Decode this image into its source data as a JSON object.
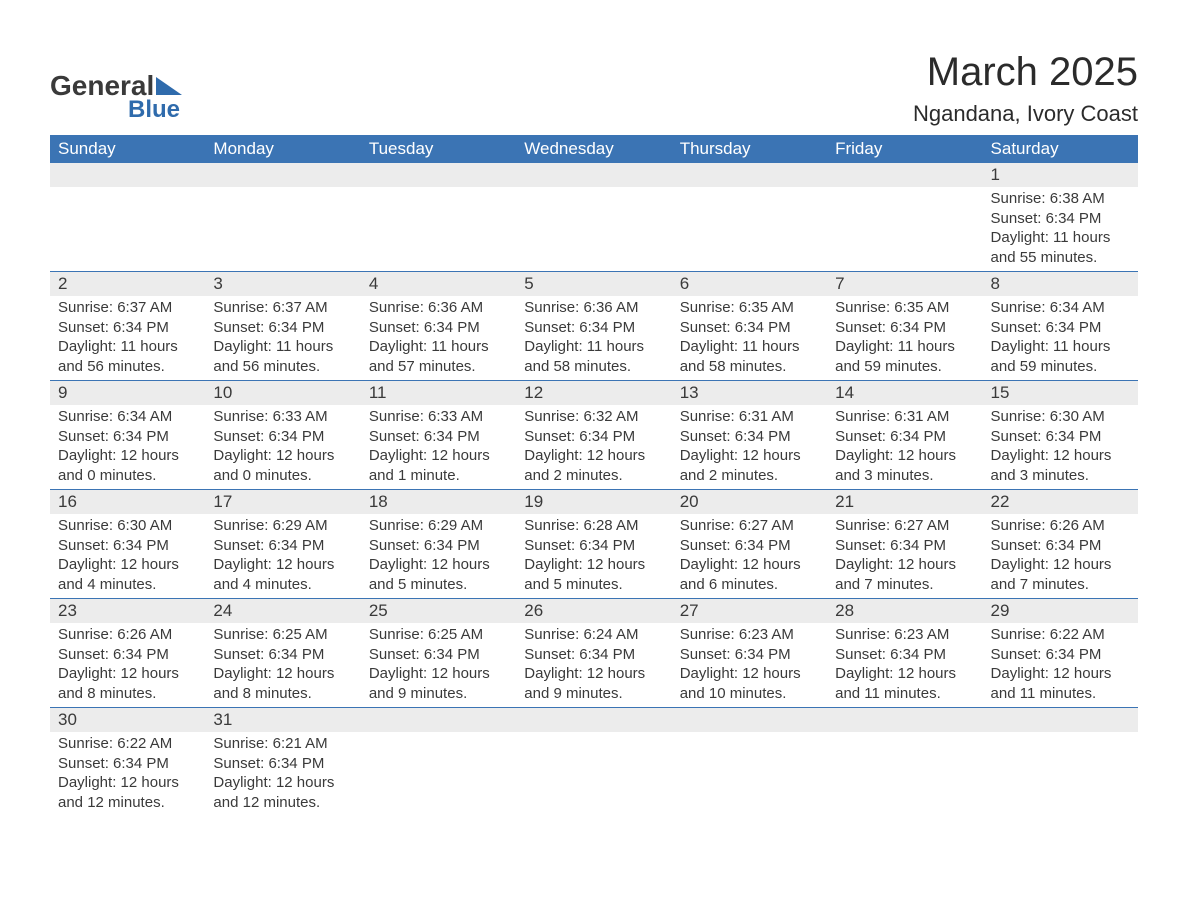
{
  "logo": {
    "text1": "General",
    "text2": "Blue"
  },
  "title": "March 2025",
  "location": "Ngandana, Ivory Coast",
  "colors": {
    "header_bg": "#3b74b4",
    "header_text": "#ffffff",
    "daynum_bg": "#ececec",
    "row_divider": "#3b74b4",
    "body_text": "#3a3a3a",
    "logo_accent": "#2f6bac"
  },
  "day_headers": [
    "Sunday",
    "Monday",
    "Tuesday",
    "Wednesday",
    "Thursday",
    "Friday",
    "Saturday"
  ],
  "weeks": [
    [
      {
        "empty": true
      },
      {
        "empty": true
      },
      {
        "empty": true
      },
      {
        "empty": true
      },
      {
        "empty": true
      },
      {
        "empty": true
      },
      {
        "num": "1",
        "sunrise": "Sunrise: 6:38 AM",
        "sunset": "Sunset: 6:34 PM",
        "daylight1": "Daylight: 11 hours",
        "daylight2": "and 55 minutes."
      }
    ],
    [
      {
        "num": "2",
        "sunrise": "Sunrise: 6:37 AM",
        "sunset": "Sunset: 6:34 PM",
        "daylight1": "Daylight: 11 hours",
        "daylight2": "and 56 minutes."
      },
      {
        "num": "3",
        "sunrise": "Sunrise: 6:37 AM",
        "sunset": "Sunset: 6:34 PM",
        "daylight1": "Daylight: 11 hours",
        "daylight2": "and 56 minutes."
      },
      {
        "num": "4",
        "sunrise": "Sunrise: 6:36 AM",
        "sunset": "Sunset: 6:34 PM",
        "daylight1": "Daylight: 11 hours",
        "daylight2": "and 57 minutes."
      },
      {
        "num": "5",
        "sunrise": "Sunrise: 6:36 AM",
        "sunset": "Sunset: 6:34 PM",
        "daylight1": "Daylight: 11 hours",
        "daylight2": "and 58 minutes."
      },
      {
        "num": "6",
        "sunrise": "Sunrise: 6:35 AM",
        "sunset": "Sunset: 6:34 PM",
        "daylight1": "Daylight: 11 hours",
        "daylight2": "and 58 minutes."
      },
      {
        "num": "7",
        "sunrise": "Sunrise: 6:35 AM",
        "sunset": "Sunset: 6:34 PM",
        "daylight1": "Daylight: 11 hours",
        "daylight2": "and 59 minutes."
      },
      {
        "num": "8",
        "sunrise": "Sunrise: 6:34 AM",
        "sunset": "Sunset: 6:34 PM",
        "daylight1": "Daylight: 11 hours",
        "daylight2": "and 59 minutes."
      }
    ],
    [
      {
        "num": "9",
        "sunrise": "Sunrise: 6:34 AM",
        "sunset": "Sunset: 6:34 PM",
        "daylight1": "Daylight: 12 hours",
        "daylight2": "and 0 minutes."
      },
      {
        "num": "10",
        "sunrise": "Sunrise: 6:33 AM",
        "sunset": "Sunset: 6:34 PM",
        "daylight1": "Daylight: 12 hours",
        "daylight2": "and 0 minutes."
      },
      {
        "num": "11",
        "sunrise": "Sunrise: 6:33 AM",
        "sunset": "Sunset: 6:34 PM",
        "daylight1": "Daylight: 12 hours",
        "daylight2": "and 1 minute."
      },
      {
        "num": "12",
        "sunrise": "Sunrise: 6:32 AM",
        "sunset": "Sunset: 6:34 PM",
        "daylight1": "Daylight: 12 hours",
        "daylight2": "and 2 minutes."
      },
      {
        "num": "13",
        "sunrise": "Sunrise: 6:31 AM",
        "sunset": "Sunset: 6:34 PM",
        "daylight1": "Daylight: 12 hours",
        "daylight2": "and 2 minutes."
      },
      {
        "num": "14",
        "sunrise": "Sunrise: 6:31 AM",
        "sunset": "Sunset: 6:34 PM",
        "daylight1": "Daylight: 12 hours",
        "daylight2": "and 3 minutes."
      },
      {
        "num": "15",
        "sunrise": "Sunrise: 6:30 AM",
        "sunset": "Sunset: 6:34 PM",
        "daylight1": "Daylight: 12 hours",
        "daylight2": "and 3 minutes."
      }
    ],
    [
      {
        "num": "16",
        "sunrise": "Sunrise: 6:30 AM",
        "sunset": "Sunset: 6:34 PM",
        "daylight1": "Daylight: 12 hours",
        "daylight2": "and 4 minutes."
      },
      {
        "num": "17",
        "sunrise": "Sunrise: 6:29 AM",
        "sunset": "Sunset: 6:34 PM",
        "daylight1": "Daylight: 12 hours",
        "daylight2": "and 4 minutes."
      },
      {
        "num": "18",
        "sunrise": "Sunrise: 6:29 AM",
        "sunset": "Sunset: 6:34 PM",
        "daylight1": "Daylight: 12 hours",
        "daylight2": "and 5 minutes."
      },
      {
        "num": "19",
        "sunrise": "Sunrise: 6:28 AM",
        "sunset": "Sunset: 6:34 PM",
        "daylight1": "Daylight: 12 hours",
        "daylight2": "and 5 minutes."
      },
      {
        "num": "20",
        "sunrise": "Sunrise: 6:27 AM",
        "sunset": "Sunset: 6:34 PM",
        "daylight1": "Daylight: 12 hours",
        "daylight2": "and 6 minutes."
      },
      {
        "num": "21",
        "sunrise": "Sunrise: 6:27 AM",
        "sunset": "Sunset: 6:34 PM",
        "daylight1": "Daylight: 12 hours",
        "daylight2": "and 7 minutes."
      },
      {
        "num": "22",
        "sunrise": "Sunrise: 6:26 AM",
        "sunset": "Sunset: 6:34 PM",
        "daylight1": "Daylight: 12 hours",
        "daylight2": "and 7 minutes."
      }
    ],
    [
      {
        "num": "23",
        "sunrise": "Sunrise: 6:26 AM",
        "sunset": "Sunset: 6:34 PM",
        "daylight1": "Daylight: 12 hours",
        "daylight2": "and 8 minutes."
      },
      {
        "num": "24",
        "sunrise": "Sunrise: 6:25 AM",
        "sunset": "Sunset: 6:34 PM",
        "daylight1": "Daylight: 12 hours",
        "daylight2": "and 8 minutes."
      },
      {
        "num": "25",
        "sunrise": "Sunrise: 6:25 AM",
        "sunset": "Sunset: 6:34 PM",
        "daylight1": "Daylight: 12 hours",
        "daylight2": "and 9 minutes."
      },
      {
        "num": "26",
        "sunrise": "Sunrise: 6:24 AM",
        "sunset": "Sunset: 6:34 PM",
        "daylight1": "Daylight: 12 hours",
        "daylight2": "and 9 minutes."
      },
      {
        "num": "27",
        "sunrise": "Sunrise: 6:23 AM",
        "sunset": "Sunset: 6:34 PM",
        "daylight1": "Daylight: 12 hours",
        "daylight2": "and 10 minutes."
      },
      {
        "num": "28",
        "sunrise": "Sunrise: 6:23 AM",
        "sunset": "Sunset: 6:34 PM",
        "daylight1": "Daylight: 12 hours",
        "daylight2": "and 11 minutes."
      },
      {
        "num": "29",
        "sunrise": "Sunrise: 6:22 AM",
        "sunset": "Sunset: 6:34 PM",
        "daylight1": "Daylight: 12 hours",
        "daylight2": "and 11 minutes."
      }
    ],
    [
      {
        "num": "30",
        "sunrise": "Sunrise: 6:22 AM",
        "sunset": "Sunset: 6:34 PM",
        "daylight1": "Daylight: 12 hours",
        "daylight2": "and 12 minutes."
      },
      {
        "num": "31",
        "sunrise": "Sunrise: 6:21 AM",
        "sunset": "Sunset: 6:34 PM",
        "daylight1": "Daylight: 12 hours",
        "daylight2": "and 12 minutes."
      },
      {
        "empty": true
      },
      {
        "empty": true
      },
      {
        "empty": true
      },
      {
        "empty": true
      },
      {
        "empty": true
      }
    ]
  ]
}
